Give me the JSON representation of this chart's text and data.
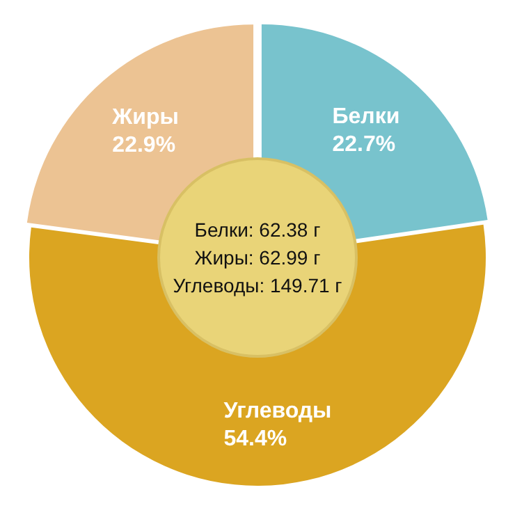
{
  "chart_data": {
    "type": "donut",
    "categories": [
      "Белки",
      "Углеводы",
      "Жиры"
    ],
    "values": [
      22.7,
      54.4,
      22.9
    ],
    "colors": [
      "#78c3cd",
      "#dba521",
      "#ecc393"
    ],
    "value_labels": [
      "22.7%",
      "54.4%",
      "22.9%"
    ],
    "legend": false,
    "annotations": [
      "Белки: 62.38 г",
      "Жиры: 62.99 г",
      "Углеводы: 149.71 г"
    ]
  }
}
